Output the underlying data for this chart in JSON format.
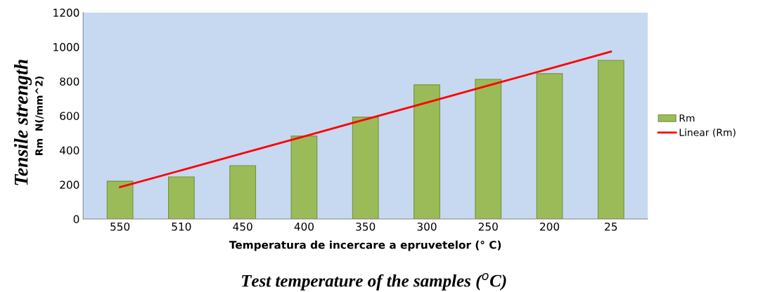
{
  "chart_data": {
    "type": "bar",
    "xlabel": "Temperatura de incercare a epruvetelor (° C)",
    "ylabel": "Rm  N(/mm^2)",
    "categories": [
      "550",
      "510",
      "450",
      "400",
      "350",
      "300",
      "250",
      "200",
      "25"
    ],
    "series": [
      {
        "name": "Rm",
        "color": "#9bbb59",
        "values": [
          220,
          245,
          310,
          482,
          592,
          780,
          812,
          845,
          922
        ]
      },
      {
        "name": "Linear (Rm)",
        "type": "line",
        "color": "#ff0000",
        "values": [
          185,
          283,
          382,
          480,
          579,
          677,
          776,
          874,
          973
        ]
      }
    ],
    "ylim": [
      0,
      1200
    ],
    "yticks": [
      0,
      200,
      400,
      600,
      800,
      1000,
      1200
    ],
    "grid": false,
    "legend": "right",
    "annotations": [
      "Tensile strength",
      "Test temperature of the samples ($^{o}$C)"
    ]
  }
}
